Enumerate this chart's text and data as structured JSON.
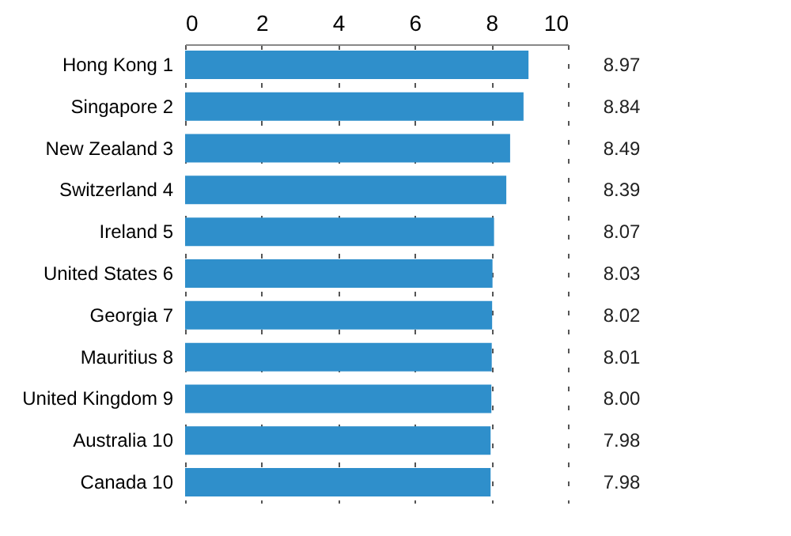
{
  "chart_data": {
    "type": "bar",
    "orientation": "horizontal",
    "categories": [
      "Hong Kong  1",
      "Singapore  2",
      "New Zealand  3",
      "Switzerland  4",
      "Ireland  5",
      "United States  6",
      "Georgia  7",
      "Mauritius  8",
      "United Kingdom  9",
      "Australia  10",
      "Canada  10"
    ],
    "values": [
      8.97,
      8.84,
      8.49,
      8.39,
      8.07,
      8.03,
      8.02,
      8.01,
      8.0,
      7.98,
      7.98
    ],
    "value_labels": [
      "8.97",
      "8.84",
      "8.49",
      "8.39",
      "8.07",
      "8.03",
      "8.02",
      "8.01",
      "8.00",
      "7.98",
      "7.98"
    ],
    "color": "#2f8fcb",
    "xlim": [
      0,
      10
    ],
    "xticks": [
      0,
      2,
      4,
      6,
      8,
      10
    ],
    "grid": "x"
  }
}
